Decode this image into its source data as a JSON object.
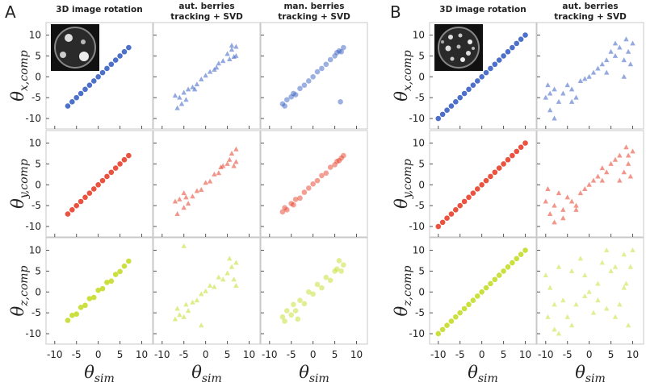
{
  "labels": [
    "A",
    "B"
  ],
  "chart_data": [
    {
      "type": "scatter",
      "title": [
        "3D image rotation"
      ],
      "ylabel": [
        "θ",
        "x,comp"
      ],
      "color": "#3a62c4",
      "marker": "circle",
      "alpha": 0.9,
      "x": [
        -7,
        -6,
        -5,
        -4,
        -3,
        -2,
        -1,
        0,
        1,
        2,
        3,
        4,
        5,
        6,
        7
      ],
      "y": [
        -7,
        -6,
        -5,
        -4,
        -3,
        -2,
        -1,
        0,
        1,
        2,
        3,
        4,
        5,
        6,
        7
      ],
      "xlim": [
        -12,
        12.5
      ],
      "ylim": [
        -12.5,
        13
      ],
      "xticks": [
        -10,
        -5,
        0,
        5,
        10
      ],
      "yticks": [
        -10,
        -5,
        0,
        5,
        10
      ]
    },
    {
      "type": "scatter",
      "title": [
        "aut. berries",
        "tracking + SVD"
      ],
      "color": "#3a62c4",
      "marker": "triangle",
      "alpha": 0.55,
      "x": [
        -7,
        -6.5,
        -6,
        -5,
        -4.5,
        -4,
        -3,
        -2,
        -1,
        0,
        1,
        2,
        3,
        4,
        5,
        5.5,
        6,
        6.5,
        7,
        7,
        -5.5,
        -2.5,
        2.5,
        6
      ],
      "y": [
        -4.5,
        -7.5,
        -5,
        -3.8,
        -5.5,
        -3,
        -2.5,
        -1.8,
        -0.6,
        0.3,
        1.2,
        1.7,
        3.2,
        3.8,
        5.5,
        4.2,
        6.5,
        4.8,
        7.2,
        5,
        -6.5,
        -3,
        2.2,
        7.5
      ],
      "xlim": [
        -12,
        12.5
      ],
      "ylim": [
        -12.5,
        13
      ],
      "xticks": [
        -10,
        -5,
        0,
        5,
        10
      ],
      "yticks": [
        -10,
        -5,
        0,
        5,
        10
      ]
    },
    {
      "type": "scatter",
      "title": [
        "man. berries",
        "tracking + SVD"
      ],
      "color": "#3a62c4",
      "marker": "circle",
      "alpha": 0.5,
      "x": [
        -7,
        -6.5,
        -6,
        -5,
        -4.5,
        -4,
        -3,
        -2,
        -1,
        0,
        1,
        2,
        3,
        4,
        5,
        5.5,
        6,
        6.5,
        7,
        6.3
      ],
      "y": [
        -6.5,
        -7,
        -5.5,
        -4.8,
        -4,
        -4.3,
        -2.8,
        -2,
        -1,
        0,
        1.2,
        2,
        3,
        4.1,
        5,
        5.8,
        6.2,
        6,
        7,
        -6
      ],
      "xlim": [
        -12,
        12.5
      ],
      "ylim": [
        -12.5,
        13
      ],
      "xticks": [
        -10,
        -5,
        0,
        5,
        10
      ],
      "yticks": [
        -10,
        -5,
        0,
        5,
        10
      ]
    },
    {
      "type": "scatter",
      "ylabel": [
        "θ",
        "y,comp"
      ],
      "color": "#e8402a",
      "marker": "circle",
      "alpha": 0.9,
      "x": [
        -7,
        -6,
        -5,
        -4,
        -3,
        -2,
        -1,
        0,
        1,
        2,
        3,
        4,
        5,
        6,
        7
      ],
      "y": [
        -7,
        -6,
        -5,
        -4,
        -3,
        -2,
        -1,
        0,
        1,
        2,
        3,
        4,
        5,
        6,
        7
      ],
      "xlim": [
        -12,
        12.5
      ],
      "ylim": [
        -12.5,
        13
      ],
      "xticks": [
        -10,
        -5,
        0,
        5,
        10
      ],
      "yticks": [
        -10,
        -5,
        0,
        5,
        10
      ]
    },
    {
      "type": "scatter",
      "color": "#e8402a",
      "marker": "triangle",
      "alpha": 0.55,
      "x": [
        -7,
        -6.5,
        -6,
        -5,
        -4.5,
        -4,
        -3,
        -2,
        -1,
        0,
        1,
        2,
        3,
        4,
        5,
        5.5,
        6,
        6.5,
        7,
        7,
        -5,
        3.5
      ],
      "y": [
        -4,
        -7,
        -3.5,
        -5.5,
        -3,
        -4.5,
        -2.8,
        -1.5,
        -1.2,
        0.5,
        0.8,
        2.5,
        2.8,
        4.5,
        5,
        6,
        7.5,
        4.5,
        8.5,
        5.5,
        -2,
        4.2
      ],
      "xlim": [
        -12,
        12.5
      ],
      "ylim": [
        -12.5,
        13
      ],
      "xticks": [
        -10,
        -5,
        0,
        5,
        10
      ],
      "yticks": [
        -10,
        -5,
        0,
        5,
        10
      ]
    },
    {
      "type": "scatter",
      "color": "#e8402a",
      "marker": "circle",
      "alpha": 0.5,
      "x": [
        -7,
        -6.5,
        -6,
        -5,
        -4.5,
        -4,
        -3,
        -2,
        -1,
        0,
        1,
        2,
        3,
        4,
        5,
        5.5,
        6,
        6.5,
        7
      ],
      "y": [
        -6.5,
        -5.5,
        -6,
        -4.5,
        -4.8,
        -3.5,
        -3.2,
        -1.8,
        -0.8,
        0.2,
        1,
        2.2,
        2.8,
        4.2,
        4.8,
        5.6,
        5.8,
        6.4,
        7
      ],
      "xlim": [
        -12,
        12.5
      ],
      "ylim": [
        -12.5,
        13
      ],
      "xticks": [
        -10,
        -5,
        0,
        5,
        10
      ],
      "yticks": [
        -10,
        -5,
        0,
        5,
        10
      ]
    },
    {
      "type": "scatter",
      "ylabel": [
        "θ",
        "z,comp"
      ],
      "xlabel": [
        "θ",
        "sim"
      ],
      "color": "#c5dd2a",
      "marker": "circle",
      "alpha": 0.9,
      "x": [
        -7,
        -6,
        -5,
        -4,
        -3,
        -2,
        -1,
        0,
        1,
        2,
        3,
        4,
        5,
        6,
        7
      ],
      "y": [
        -6.8,
        -5.6,
        -5.3,
        -3.7,
        -3.2,
        -1.6,
        -1.3,
        0.4,
        0.8,
        2.3,
        2.6,
        4.2,
        4.9,
        6.2,
        7.4
      ],
      "xlim": [
        -12,
        12.5
      ],
      "ylim": [
        -12.5,
        13
      ],
      "xticks": [
        -10,
        -5,
        0,
        5,
        10
      ],
      "yticks": [
        -10,
        -5,
        0,
        5,
        10
      ]
    },
    {
      "type": "scatter",
      "xlabel": [
        "θ",
        "sim"
      ],
      "color": "#c5dd2a",
      "marker": "triangle",
      "alpha": 0.55,
      "x": [
        -7,
        -6.5,
        -6,
        -5,
        -4.5,
        -4,
        -3,
        -2,
        -1,
        0,
        1,
        2,
        3,
        4,
        5,
        5.5,
        6,
        6.5,
        7,
        7,
        -5,
        -1
      ],
      "y": [
        -6.5,
        -4,
        -5.5,
        -6,
        -3,
        -4.5,
        -2.5,
        -2,
        -0.5,
        0.2,
        1.5,
        1.2,
        3.5,
        3,
        4.5,
        8,
        6,
        3,
        7,
        1.5,
        11,
        -8
      ],
      "xlim": [
        -12,
        12.5
      ],
      "ylim": [
        -12.5,
        13
      ],
      "xticks": [
        -10,
        -5,
        0,
        5,
        10
      ],
      "yticks": [
        -10,
        -5,
        0,
        5,
        10
      ]
    },
    {
      "type": "scatter",
      "xlabel": [
        "θ",
        "sim"
      ],
      "color": "#c5dd2a",
      "marker": "circle",
      "alpha": 0.5,
      "x": [
        -7,
        -6.5,
        -6,
        -5,
        -4.5,
        -4,
        -3,
        -2,
        -1,
        0,
        1,
        2,
        3,
        4,
        5,
        5.5,
        6,
        6.5,
        7,
        -3.5
      ],
      "y": [
        -6,
        -7,
        -4.5,
        -5.5,
        -3,
        -4.5,
        -2,
        -2.8,
        0,
        -0.5,
        1.8,
        1,
        3.5,
        2.8,
        5,
        5.5,
        7.5,
        5,
        6.5,
        -6.5
      ],
      "xlim": [
        -12,
        12.5
      ],
      "ylim": [
        -12.5,
        13
      ],
      "xticks": [
        -10,
        -5,
        0,
        5,
        10
      ],
      "yticks": [
        -10,
        -5,
        0,
        5,
        10
      ]
    },
    {
      "type": "scatter",
      "title": [
        "3D image rotation"
      ],
      "ylabel": [
        "θ",
        "x,comp"
      ],
      "color": "#3a62c4",
      "marker": "circle",
      "alpha": 0.9,
      "x": [
        -10,
        -9,
        -8,
        -7,
        -6,
        -5,
        -4,
        -3,
        -2,
        -1,
        0,
        1,
        2,
        3,
        4,
        5,
        6,
        7,
        8,
        9,
        10
      ],
      "y": [
        -10,
        -9,
        -8,
        -7,
        -6,
        -5,
        -4,
        -3,
        -2,
        -1,
        0,
        1,
        2,
        3,
        4,
        5,
        6,
        7,
        8,
        9,
        10
      ],
      "xlim": [
        -12,
        12.5
      ],
      "ylim": [
        -12.5,
        13
      ],
      "xticks": [
        -10,
        -5,
        0,
        5,
        10
      ],
      "yticks": [
        -10,
        -5,
        0,
        5,
        10
      ]
    },
    {
      "type": "scatter",
      "title": [
        "aut. berries",
        "tracking + SVD"
      ],
      "color": "#3a62c4",
      "marker": "triangle",
      "alpha": 0.55,
      "x": [
        -10,
        -9.5,
        -9,
        -8,
        -7,
        -6,
        -5,
        -4,
        -3,
        -2,
        -1,
        0,
        1,
        2,
        3,
        4,
        5,
        6,
        7,
        8,
        8.5,
        9,
        9.5,
        10,
        -8,
        -4,
        4,
        8,
        -9,
        6
      ],
      "y": [
        -5,
        -2,
        -8,
        -3,
        -6,
        -4,
        -2,
        -3,
        -5,
        -1,
        -0.5,
        0,
        1,
        2,
        3,
        4,
        6,
        5,
        7,
        4,
        9,
        6,
        3,
        8,
        -10,
        -6,
        1,
        0,
        -4,
        8
      ],
      "xlim": [
        -12,
        12.5
      ],
      "ylim": [
        -12.5,
        13
      ],
      "xticks": [
        -10,
        -5,
        0,
        5,
        10
      ],
      "yticks": [
        -10,
        -5,
        0,
        5,
        10
      ]
    },
    {
      "type": "scatter",
      "ylabel": [
        "θ",
        "y,comp"
      ],
      "color": "#e8402a",
      "marker": "circle",
      "alpha": 0.9,
      "x": [
        -10,
        -9,
        -8,
        -7,
        -6,
        -5,
        -4,
        -3,
        -2,
        -1,
        0,
        1,
        2,
        3,
        4,
        5,
        6,
        7,
        8,
        9,
        10
      ],
      "y": [
        -10,
        -9,
        -8,
        -7,
        -6,
        -5,
        -4,
        -3,
        -2,
        -1,
        0,
        1,
        2,
        3,
        4,
        5,
        6,
        7,
        8,
        9,
        10
      ],
      "xlim": [
        -12,
        12.5
      ],
      "ylim": [
        -12.5,
        13
      ],
      "xticks": [
        -10,
        -5,
        0,
        5,
        10
      ],
      "yticks": [
        -10,
        -5,
        0,
        5,
        10
      ]
    },
    {
      "type": "scatter",
      "color": "#e8402a",
      "marker": "triangle",
      "alpha": 0.55,
      "x": [
        -10,
        -9.5,
        -9,
        -8,
        -7,
        -6,
        -5,
        -4,
        -3,
        -2,
        -1,
        0,
        1,
        2,
        3,
        4,
        5,
        6,
        7,
        8,
        8.5,
        9,
        9.5,
        10,
        -8,
        -3,
        3,
        7,
        -6,
        9
      ],
      "y": [
        -4,
        -1,
        -7,
        -5,
        -2,
        -6,
        -3,
        -4,
        -6,
        -2,
        -1,
        0,
        1,
        2,
        4,
        3,
        5,
        6,
        7,
        3,
        9,
        5,
        2,
        8,
        -9,
        -5,
        1,
        1,
        -8,
        7
      ],
      "xlim": [
        -12,
        12.5
      ],
      "ylim": [
        -12.5,
        13
      ],
      "xticks": [
        -10,
        -5,
        0,
        5,
        10
      ],
      "yticks": [
        -10,
        -5,
        0,
        5,
        10
      ]
    },
    {
      "type": "scatter",
      "ylabel": [
        "θ",
        "z,comp"
      ],
      "xlabel": [
        "θ",
        "sim"
      ],
      "color": "#c5dd2a",
      "marker": "circle",
      "alpha": 0.9,
      "x": [
        -10,
        -9,
        -8,
        -7,
        -6,
        -5,
        -4,
        -3,
        -2,
        -1,
        0,
        1,
        2,
        3,
        4,
        5,
        6,
        7,
        8,
        9,
        10
      ],
      "y": [
        -10,
        -9,
        -8,
        -7,
        -6,
        -5,
        -4,
        -3,
        -2,
        -1,
        0,
        1,
        2,
        3,
        4,
        5,
        6,
        7,
        8,
        9,
        10
      ],
      "xlim": [
        -12,
        12.5
      ],
      "ylim": [
        -12.5,
        13
      ],
      "xticks": [
        -10,
        -5,
        0,
        5,
        10
      ],
      "yticks": [
        -10,
        -5,
        0,
        5,
        10
      ]
    },
    {
      "type": "scatter",
      "xlabel": [
        "θ",
        "sim"
      ],
      "color": "#c5dd2a",
      "marker": "triangle",
      "alpha": 0.5,
      "x": [
        -10,
        -9.5,
        -9,
        -8,
        -7,
        -6,
        -5,
        -4,
        -3,
        -2,
        -1,
        0,
        1,
        2,
        3,
        4,
        5,
        6,
        7,
        8,
        8.5,
        9,
        9.5,
        10,
        -8,
        -4,
        -1,
        4,
        6,
        8,
        -7,
        2
      ],
      "y": [
        4,
        -6,
        1,
        -9,
        6,
        -2,
        -6,
        5,
        -3,
        8,
        -1,
        0,
        -5,
        2,
        7,
        -4,
        5,
        6,
        -3,
        9,
        2,
        -8,
        6,
        10,
        -3,
        -8,
        4,
        10,
        -6,
        1,
        -10,
        -2
      ],
      "xlim": [
        -12,
        12.5
      ],
      "ylim": [
        -12.5,
        13
      ],
      "xticks": [
        -10,
        -5,
        0,
        5,
        10
      ],
      "yticks": [
        -10,
        -5,
        0,
        5,
        10
      ]
    }
  ]
}
